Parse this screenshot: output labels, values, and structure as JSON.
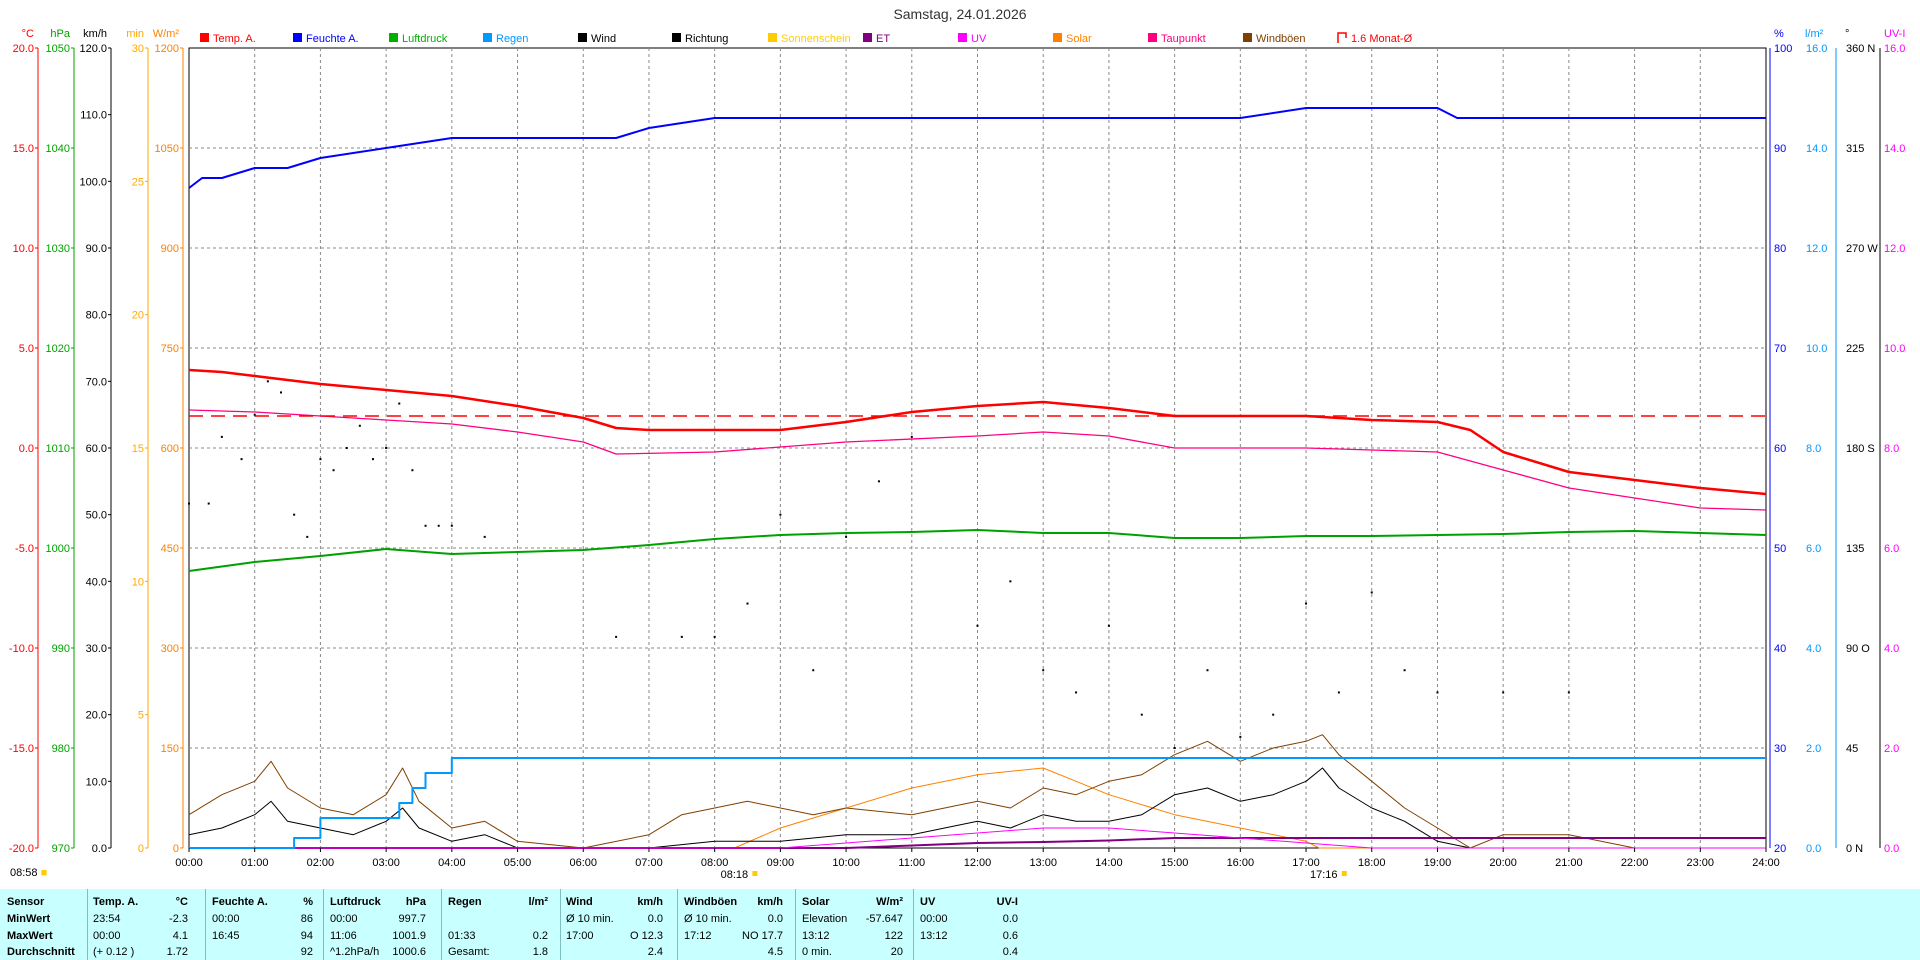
{
  "title": "Samstag, 24.01.2026",
  "legend": [
    {
      "label": "Temp. A.",
      "color": "#ff0000"
    },
    {
      "label": "Feuchte A.",
      "color": "#0000ff"
    },
    {
      "label": "Luftdruck",
      "color": "#00b000"
    },
    {
      "label": "Regen",
      "color": "#0099ff"
    },
    {
      "label": "Wind",
      "color": "#000000"
    },
    {
      "label": "Richtung",
      "color": "#000000"
    },
    {
      "label": "Sonnenschein",
      "color": "#ffcc00"
    },
    {
      "label": "ET",
      "color": "#800080"
    },
    {
      "label": "UV",
      "color": "#ff00ff"
    },
    {
      "label": "Solar",
      "color": "#ff8000"
    },
    {
      "label": "Taupunkt",
      "color": "#ff0080"
    },
    {
      "label": "Windböen",
      "color": "#804000"
    },
    {
      "label": "1.6 Monat-Ø",
      "color": "#ff0000"
    }
  ],
  "left_axes": [
    {
      "unit": "°C",
      "color": "#ff0000",
      "ticks": [
        "20.0",
        "15.0",
        "10.0",
        "5.0",
        "0.0",
        "-5.0",
        "-10.0",
        "-15.0",
        "-20.0"
      ]
    },
    {
      "unit": "hPa",
      "color": "#00a000",
      "ticks": [
        "1050",
        "1040",
        "1030",
        "1020",
        "1010",
        "1000",
        "990",
        "980",
        "970"
      ]
    },
    {
      "unit": "km/h",
      "color": "#000000",
      "ticks": [
        "120.0",
        "110.0",
        "100.0",
        "90.0",
        "80.0",
        "70.0",
        "60.0",
        "50.0",
        "40.0",
        "30.0",
        "20.0",
        "10.0",
        "0.0"
      ]
    },
    {
      "unit": "min",
      "color": "#ffaa00",
      "ticks": [
        "30",
        "25",
        "20",
        "15",
        "10",
        "5",
        "0"
      ]
    },
    {
      "unit": "W/m²",
      "color": "#ff8000",
      "ticks": [
        "1200",
        "1050",
        "900",
        "750",
        "600",
        "450",
        "300",
        "150",
        "0"
      ]
    }
  ],
  "right_axes": [
    {
      "unit": "%",
      "color": "#0000ff",
      "ticks": [
        "100",
        "90",
        "80",
        "70",
        "60",
        "50",
        "40",
        "30",
        "20"
      ]
    },
    {
      "unit": "l/m²",
      "color": "#0099ff",
      "ticks": [
        "16.0",
        "14.0",
        "12.0",
        "10.0",
        "8.0",
        "6.0",
        "4.0",
        "2.0",
        "0.0"
      ]
    },
    {
      "unit": "°",
      "color": "#000000",
      "ticks": [
        "360 N",
        "315",
        "270 W",
        "225",
        "180 S",
        "135",
        "90 O",
        "45",
        "0 N"
      ]
    },
    {
      "unit": "UV-I",
      "color": "#ff00ff",
      "ticks": [
        "16.0",
        "14.0",
        "12.0",
        "10.0",
        "8.0",
        "6.0",
        "4.0",
        "2.0",
        "0.0"
      ]
    }
  ],
  "x_ticks": [
    "00:00",
    "01:00",
    "02:00",
    "03:00",
    "04:00",
    "05:00",
    "06:00",
    "07:00",
    "08:00",
    "09:00",
    "10:00",
    "11:00",
    "12:00",
    "13:00",
    "14:00",
    "15:00",
    "16:00",
    "17:00",
    "18:00",
    "19:00",
    "20:00",
    "21:00",
    "22:00",
    "23:00",
    "24:00"
  ],
  "markers": {
    "left_time": "08:58",
    "sunrise": "08:18",
    "sunset": "17:16"
  },
  "chart_data": {
    "type": "line",
    "title": "Samstag, 24.01.2026",
    "x_unit": "hours",
    "xlim": [
      0,
      24
    ],
    "series": [
      {
        "name": "Temp. A.",
        "unit": "°C",
        "ylim": [
          -20,
          20
        ],
        "x": [
          0,
          0.5,
          1,
          1.5,
          2,
          3,
          4,
          5,
          6,
          6.5,
          7,
          8,
          9,
          10,
          11,
          12,
          13,
          14,
          15,
          16,
          17,
          18,
          19,
          19.5,
          20,
          21,
          22,
          23,
          24
        ],
        "y": [
          3.9,
          3.8,
          3.6,
          3.4,
          3.2,
          2.9,
          2.6,
          2.1,
          1.5,
          1.0,
          0.9,
          0.9,
          0.9,
          1.3,
          1.8,
          2.1,
          2.3,
          2.0,
          1.6,
          1.6,
          1.6,
          1.4,
          1.3,
          0.9,
          -0.2,
          -1.2,
          -1.6,
          -2.0,
          -2.3
        ]
      },
      {
        "name": "Feuchte A.",
        "unit": "%",
        "ylim": [
          20,
          100
        ],
        "x": [
          0,
          0.2,
          0.5,
          1,
          1.5,
          2,
          3,
          4,
          5,
          6,
          6.5,
          7,
          8,
          9,
          10,
          12,
          14,
          16,
          17,
          17.5,
          18,
          19,
          19.3,
          20,
          22,
          24
        ],
        "y": [
          86,
          87,
          87,
          88,
          88,
          89,
          90,
          91,
          91,
          91,
          91,
          92,
          93,
          93,
          93,
          93,
          93,
          93,
          94,
          94,
          94,
          94,
          93,
          93,
          93,
          93
        ]
      },
      {
        "name": "Luftdruck",
        "unit": "hPa",
        "ylim": [
          970,
          1050
        ],
        "x": [
          0,
          1,
          2,
          3,
          4,
          5,
          6,
          7,
          8,
          9,
          10,
          11,
          12,
          13,
          14,
          15,
          16,
          17,
          18,
          19,
          20,
          21,
          22,
          23,
          24
        ],
        "y": [
          997.7,
          998.6,
          999.2,
          999.9,
          999.4,
          999.6,
          999.8,
          1000.3,
          1000.9,
          1001.3,
          1001.5,
          1001.6,
          1001.8,
          1001.5,
          1001.5,
          1001.0,
          1001.0,
          1001.2,
          1001.2,
          1001.3,
          1001.4,
          1001.6,
          1001.7,
          1001.5,
          1001.3
        ]
      },
      {
        "name": "Taupunkt",
        "unit": "°C",
        "ylim": [
          -20,
          20
        ],
        "x": [
          0,
          1,
          2,
          3,
          4,
          5,
          6,
          6.5,
          8,
          10,
          12,
          13,
          14,
          15,
          16,
          17,
          18,
          19,
          20,
          21,
          22,
          23,
          24
        ],
        "y": [
          1.9,
          1.8,
          1.6,
          1.4,
          1.2,
          0.8,
          0.3,
          -0.3,
          -0.2,
          0.3,
          0.6,
          0.8,
          0.6,
          0.0,
          0.0,
          0.0,
          -0.1,
          -0.2,
          -1.1,
          -2.0,
          -2.5,
          -3.0,
          -3.1
        ]
      },
      {
        "name": "1.6 Monat-Ø",
        "unit": "°C",
        "ylim": [
          -20,
          20
        ],
        "x": [
          0,
          24
        ],
        "y": [
          1.6,
          1.6
        ]
      },
      {
        "name": "Regen",
        "unit": "l/m²",
        "ylim": [
          0,
          16
        ],
        "x": [
          0,
          1.5,
          1.6,
          2,
          3,
          3.2,
          3.4,
          3.6,
          3.8,
          4,
          24
        ],
        "y": [
          0,
          0,
          0.2,
          0.6,
          0.6,
          0.9,
          1.2,
          1.5,
          1.5,
          1.8,
          1.8
        ]
      },
      {
        "name": "Wind",
        "unit": "km/h",
        "ylim": [
          0,
          120
        ],
        "x": [
          0,
          0.5,
          1,
          1.25,
          1.5,
          2,
          2.5,
          3,
          3.25,
          3.5,
          4,
          4.5,
          5,
          6,
          7,
          8,
          9,
          10,
          11,
          12,
          12.5,
          13,
          13.5,
          14,
          14.5,
          15,
          15.5,
          16,
          16.5,
          17,
          17.25,
          17.5,
          18,
          18.5,
          19,
          19.5,
          20,
          21,
          22,
          23,
          24
        ],
        "y": [
          2,
          3,
          5,
          7,
          4,
          3,
          2,
          4,
          6,
          3,
          1,
          2,
          0,
          0,
          0,
          1,
          1,
          2,
          2,
          4,
          3,
          5,
          4,
          4,
          5,
          8,
          9,
          7,
          8,
          10,
          12,
          9,
          6,
          4,
          1,
          0,
          0,
          0,
          0,
          0,
          0
        ]
      },
      {
        "name": "Windböen",
        "unit": "km/h",
        "ylim": [
          0,
          120
        ],
        "x": [
          0,
          0.5,
          1,
          1.25,
          1.5,
          2,
          2.5,
          3,
          3.25,
          3.5,
          4,
          4.5,
          5,
          6,
          7,
          7.5,
          8,
          8.5,
          9,
          9.5,
          10,
          11,
          12,
          12.5,
          13,
          13.5,
          14,
          14.5,
          15,
          15.5,
          16,
          16.5,
          17,
          17.25,
          17.5,
          18,
          18.5,
          19,
          19.5,
          20,
          21,
          22,
          23,
          24
        ],
        "y": [
          5,
          8,
          10,
          13,
          9,
          6,
          5,
          8,
          12,
          7,
          3,
          4,
          1,
          0,
          2,
          5,
          6,
          7,
          6,
          5,
          6,
          5,
          7,
          6,
          9,
          8,
          10,
          11,
          14,
          16,
          13,
          15,
          16,
          17,
          14,
          10,
          6,
          3,
          0,
          2,
          2,
          0,
          0,
          0
        ]
      },
      {
        "name": "Solar",
        "unit": "W/m²",
        "ylim": [
          0,
          1200
        ],
        "x": [
          0,
          8.3,
          9,
          10,
          11,
          12,
          13,
          13.5,
          14,
          15,
          16,
          17,
          17.2,
          24
        ],
        "y": [
          0,
          0,
          30,
          60,
          90,
          110,
          120,
          100,
          80,
          50,
          30,
          10,
          0,
          0
        ]
      },
      {
        "name": "UV",
        "unit": "UV-I",
        "ylim": [
          0,
          16
        ],
        "x": [
          0,
          9,
          10,
          11,
          12,
          13,
          14,
          15,
          16,
          17,
          18,
          19,
          24
        ],
        "y": [
          0,
          0,
          0.1,
          0.2,
          0.3,
          0.4,
          0.4,
          0.3,
          0.2,
          0.1,
          0,
          0,
          0
        ]
      },
      {
        "name": "ET",
        "unit": "l/m²",
        "ylim": [
          0,
          16
        ],
        "x": [
          0,
          10,
          11,
          12,
          13,
          14,
          15,
          17,
          19,
          24
        ],
        "y": [
          0,
          0,
          0.05,
          0.1,
          0.12,
          0.15,
          0.2,
          0.2,
          0.2,
          0.2
        ]
      },
      {
        "name": "Richtung",
        "unit": "°",
        "ylim": [
          0,
          360
        ],
        "type": "scatter",
        "x": [
          0,
          0.3,
          0.5,
          0.8,
          1,
          1.2,
          1.4,
          1.6,
          1.8,
          2,
          2.2,
          2.4,
          2.6,
          2.8,
          3,
          3.2,
          3.4,
          3.6,
          3.8,
          4,
          4.5,
          6.5,
          7.5,
          8,
          8.5,
          9,
          9.5,
          10,
          10.5,
          11,
          12,
          12.5,
          13,
          13.5,
          14,
          14.5,
          15,
          15.5,
          16,
          16.5,
          17,
          17.5,
          18,
          18.5,
          19,
          20,
          21
        ],
        "y": [
          155,
          155,
          185,
          175,
          195,
          210,
          205,
          150,
          140,
          175,
          170,
          180,
          190,
          175,
          180,
          200,
          170,
          145,
          145,
          145,
          140,
          95,
          95,
          95,
          110,
          150,
          80,
          140,
          165,
          185,
          100,
          120,
          80,
          70,
          100,
          60,
          45,
          80,
          50,
          60,
          110,
          70,
          115,
          80,
          70,
          70,
          70
        ]
      }
    ]
  },
  "stats": {
    "headers": [
      "Sensor",
      "Temp. A.",
      "°C",
      "Feuchte A.",
      "%",
      "Luftdruck",
      "hPa",
      "Regen",
      "l/m²",
      "Wind",
      "km/h",
      "Windböen",
      "km/h",
      "Solar",
      "W/m²",
      "UV",
      "UV-I"
    ],
    "rows": [
      [
        "MinWert",
        "23:54",
        "-2.3",
        "00:00",
        "86",
        "00:00",
        "997.7",
        "",
        "",
        "Ø 10 min.",
        "0.0",
        "Ø 10 min.",
        "0.0",
        "Elevation",
        "-57.647",
        "00:00",
        "0.0"
      ],
      [
        "MaxWert",
        "00:00",
        "4.1",
        "16:45",
        "94",
        "11:06",
        "1001.9",
        "01:33",
        "0.2",
        "17:00",
        "O 12.3",
        "17:12",
        "NO 17.7",
        "13:12",
        "122",
        "13:12",
        "0.6"
      ],
      [
        "Durchschnitt",
        "(+ 0.12 )",
        "1.72",
        "",
        "92",
        "^1.2hPa/h",
        "1000.6",
        "Gesamt:",
        "1.8",
        "",
        "2.4",
        "",
        "4.5",
        "0 min.",
        "20",
        "",
        "0.4"
      ]
    ]
  }
}
